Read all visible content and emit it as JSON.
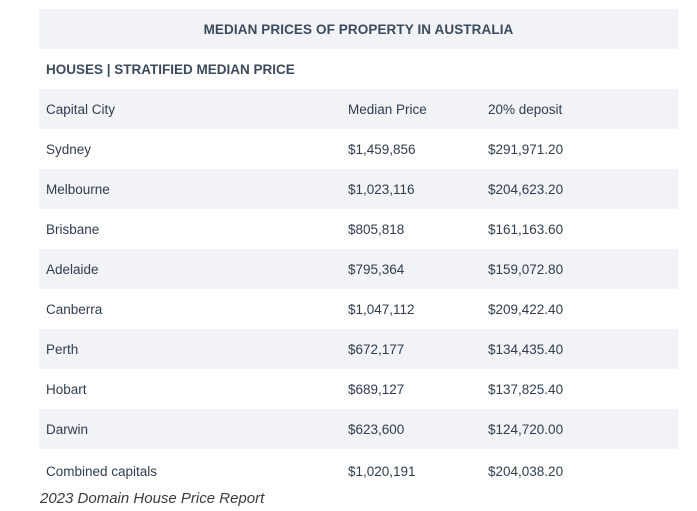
{
  "table": {
    "title": "MEDIAN PRICES OF PROPERTY IN AUSTRALIA",
    "section": "HOUSES | STRATIFIED MEDIAN PRICE",
    "headers": [
      "Capital City",
      "Median Price",
      "20% deposit"
    ],
    "rows": [
      [
        "Sydney",
        "$1,459,856",
        "$291,971.20"
      ],
      [
        "Melbourne",
        "$1,023,116",
        "$204,623.20"
      ],
      [
        "Brisbane",
        "$805,818",
        "$161,163.60"
      ],
      [
        "Adelaide",
        "$795,364",
        "$159,072.80"
      ],
      [
        "Canberra",
        "$1,047,112",
        "$209,422.40"
      ],
      [
        "Perth",
        "$672,177",
        "$134,435.40"
      ],
      [
        "Hobart",
        "$689,127",
        "$137,825.40"
      ],
      [
        "Darwin",
        "$623,600",
        "$124,720.00"
      ],
      [
        "Combined capitals",
        "$1,020,191",
        "$204,038.20"
      ]
    ]
  },
  "caption": "2023 Domain House Price Report"
}
